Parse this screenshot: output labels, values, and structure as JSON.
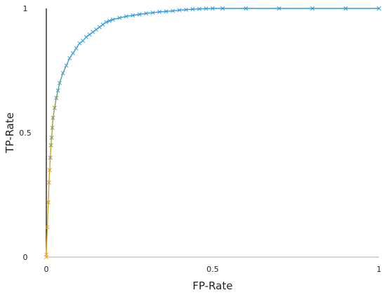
{
  "chart_data": {
    "type": "line",
    "title": "",
    "xlabel": "FP-Rate",
    "ylabel": "TP-Rate",
    "xlim": [
      0,
      1
    ],
    "ylim": [
      0,
      1
    ],
    "xticks": [
      0,
      0.5,
      1
    ],
    "xtick_labels": [
      "0",
      "0.5",
      "1"
    ],
    "yticks": [
      0,
      0.5,
      1
    ],
    "ytick_labels": [
      "0",
      "0.5",
      "1"
    ],
    "grid": false,
    "legend": "none",
    "marker": "x",
    "color_gradient": [
      "#f4a623",
      "#c8a02a",
      "#7a9a50",
      "#3fa0d8",
      "#2e9be0"
    ],
    "series": [
      {
        "x": [
          0,
          0,
          0.003,
          0.006,
          0.008,
          0.01,
          0.012,
          0.014,
          0.016,
          0.018,
          0.02,
          0.025,
          0.03,
          0.035,
          0.04,
          0.05,
          0.06,
          0.07,
          0.08,
          0.09,
          0.1,
          0.11,
          0.12,
          0.13,
          0.14,
          0.15,
          0.16,
          0.17,
          0.18,
          0.19,
          0.2,
          0.22,
          0.24,
          0.26,
          0.28,
          0.3,
          0.32,
          0.34,
          0.36,
          0.38,
          0.4,
          0.42,
          0.44,
          0.46,
          0.48,
          0.5,
          0.53,
          0.6,
          0.7,
          0.8,
          0.9,
          1.0
        ],
        "y": [
          0,
          0.01,
          0.12,
          0.22,
          0.3,
          0.35,
          0.4,
          0.45,
          0.48,
          0.52,
          0.56,
          0.6,
          0.64,
          0.67,
          0.7,
          0.74,
          0.77,
          0.8,
          0.82,
          0.84,
          0.86,
          0.87,
          0.885,
          0.895,
          0.905,
          0.915,
          0.925,
          0.935,
          0.945,
          0.95,
          0.955,
          0.962,
          0.968,
          0.972,
          0.976,
          0.98,
          0.983,
          0.986,
          0.988,
          0.99,
          0.993,
          0.995,
          0.997,
          0.998,
          0.999,
          1.0,
          1.0,
          1.0,
          1.0,
          1.0,
          1.0,
          1.0
        ]
      }
    ]
  }
}
